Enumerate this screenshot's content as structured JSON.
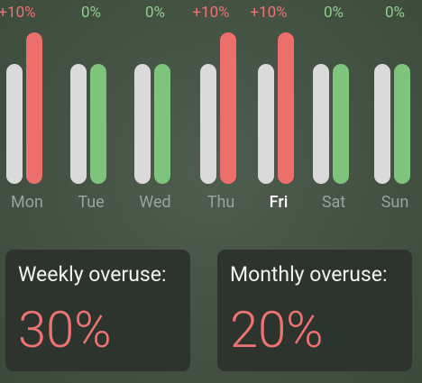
{
  "weekly": {
    "days": [
      {
        "label": "Mon",
        "pct": "+10%",
        "status": "over",
        "usage_fraction": 1.0
      },
      {
        "label": "Tue",
        "pct": "0%",
        "status": "ok",
        "usage_fraction": 0.79
      },
      {
        "label": "Wed",
        "pct": "0%",
        "status": "ok",
        "usage_fraction": 0.79
      },
      {
        "label": "Thu",
        "pct": "+10%",
        "status": "over",
        "usage_fraction": 1.0
      },
      {
        "label": "Fri",
        "pct": "+10%",
        "status": "over",
        "usage_fraction": 1.0
      },
      {
        "label": "Sat",
        "pct": "0%",
        "status": "ok",
        "usage_fraction": 0.79
      },
      {
        "label": "Sun",
        "pct": "0%",
        "status": "ok",
        "usage_fraction": 0.79
      }
    ],
    "selected_day": "Fri",
    "limit_fraction": 0.79
  },
  "cards": {
    "weekly": {
      "title": "Weekly overuse:",
      "value": "30%"
    },
    "monthly": {
      "title": "Monthly overuse:",
      "value": "20%"
    }
  },
  "colors": {
    "over": "#ed6f6c",
    "ok": "#7ec47c",
    "base": "#dadada",
    "background": "#445244",
    "card": "#2d342d"
  }
}
